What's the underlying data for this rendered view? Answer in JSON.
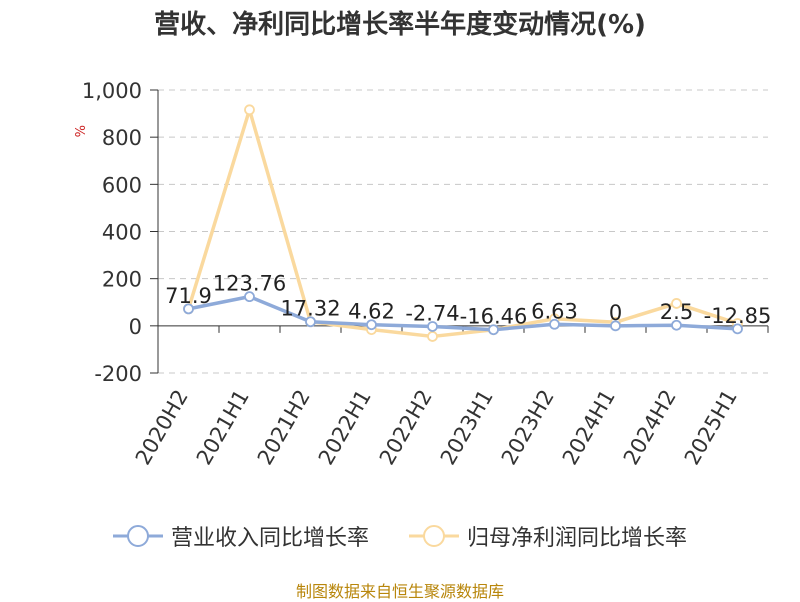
{
  "chart_data": {
    "type": "line",
    "title": "营收、净利同比增长率半年度变动情况(%)",
    "ylabel_unit": "%",
    "categories": [
      "2020H2",
      "2021H1",
      "2021H2",
      "2022H1",
      "2022H2",
      "2023H1",
      "2023H2",
      "2024H1",
      "2024H2",
      "2025H1"
    ],
    "y_ticks": [
      "1,000",
      "800",
      "600",
      "400",
      "200",
      "0",
      "-200"
    ],
    "ylim": [
      -200,
      1000
    ],
    "grid": "horizontal-dashed",
    "legend_position": "bottom",
    "series": [
      {
        "name": "营业收入同比增长率",
        "color": "#8eaad9",
        "values": [
          71.9,
          123.76,
          17.32,
          4.62,
          -2.74,
          -16.46,
          6.63,
          0,
          2.5,
          -12.85
        ],
        "labels": [
          "71.9",
          "123.76",
          "17.32",
          "4.62",
          "-2.74",
          "-16.46",
          "6.63",
          "0",
          "2.5",
          "-12.85"
        ]
      },
      {
        "name": "归母净利润同比增长率",
        "color": "#fad99e",
        "values": [
          71.9,
          916,
          17.32,
          -16,
          -45,
          -16.46,
          30,
          15,
          95,
          10
        ]
      }
    ]
  },
  "source": "制图数据来自恒生聚源数据库"
}
